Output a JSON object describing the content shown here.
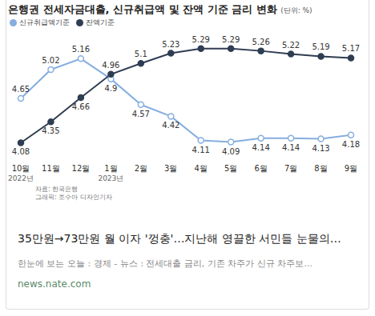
{
  "chart_data": {
    "type": "line",
    "title": "은행권 전세자금대출, 신규취급액 및 잔액 기준 금리 변화",
    "subtitle": "(단위: %)",
    "categories": [
      "10월 2022년",
      "11월",
      "12월",
      "1월 2023년",
      "2월",
      "3월",
      "4월",
      "5월",
      "6월",
      "7월",
      "8월",
      "9월"
    ],
    "series": [
      {
        "name": "신규취급액기준",
        "color": "#86aee0",
        "marker": "circle",
        "values": [
          4.65,
          5.02,
          5.16,
          4.9,
          4.57,
          4.42,
          4.11,
          4.09,
          4.14,
          4.14,
          4.13,
          4.18
        ]
      },
      {
        "name": "잔액기준",
        "color": "#2f3d52",
        "marker": "circle",
        "values": [
          4.08,
          4.35,
          4.66,
          4.96,
          5.1,
          5.23,
          5.29,
          5.29,
          5.26,
          5.22,
          5.19,
          5.17
        ]
      }
    ],
    "ylim": [
      3.9,
      5.4
    ],
    "grid": false,
    "data_labels": true,
    "tick_labels": "x",
    "legend": "top left",
    "sources": [
      "자료: 한국은행",
      "그래픽: 조수아 디자인기자"
    ]
  },
  "card": {
    "headline": "35만원→73만원 월 이자 '껑충'…지난해 영끌한 서민들 눈물의…",
    "snippet": "한눈에 보는 오늘 : 경제 - 뉴스 : 전세대출 금리, 기존 차주가 신규 차주보…",
    "site": "news.nate.com"
  }
}
